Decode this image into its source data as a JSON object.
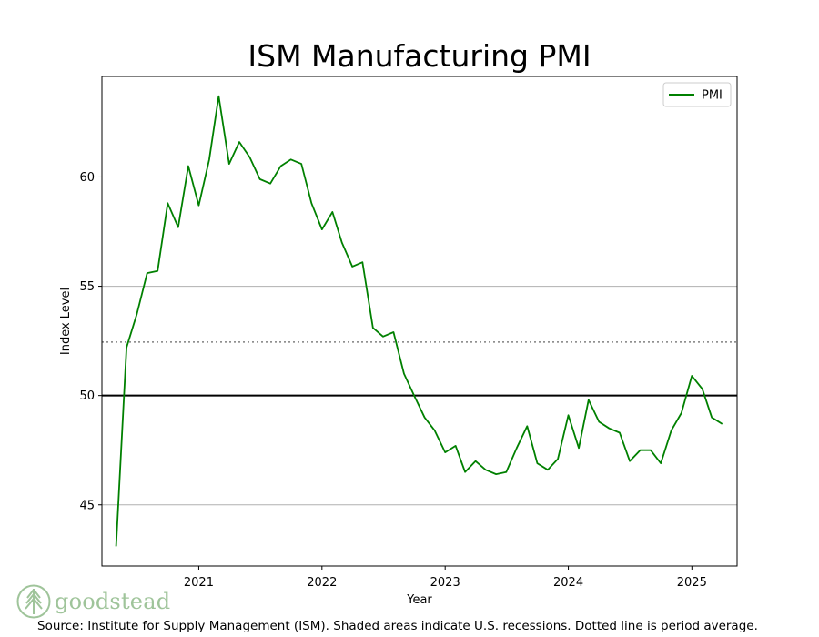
{
  "chart_data": {
    "type": "line",
    "title": "ISM Manufacturing PMI",
    "xlabel": "Year",
    "ylabel": "Index Level",
    "x_ticks": [
      "2021",
      "2022",
      "2023",
      "2024",
      "2025"
    ],
    "y_ticks": [
      45,
      50,
      55,
      60
    ],
    "xlim": [
      "2020-03-20",
      "2025-05-15"
    ],
    "ylim": [
      42.2,
      64.6
    ],
    "grid": "horizontal",
    "legend_position": "top-right",
    "reference_lines": {
      "threshold": 50,
      "period_average": 52.45
    },
    "series": [
      {
        "name": "PMI",
        "color": "#008000",
        "points": [
          [
            "2020-05-01",
            43.1
          ],
          [
            "2020-06-01",
            52.2
          ],
          [
            "2020-07-01",
            53.7
          ],
          [
            "2020-08-01",
            55.6
          ],
          [
            "2020-09-01",
            55.7
          ],
          [
            "2020-10-01",
            58.8
          ],
          [
            "2020-11-01",
            57.7
          ],
          [
            "2020-12-01",
            60.5
          ],
          [
            "2021-01-01",
            58.7
          ],
          [
            "2021-02-01",
            60.8
          ],
          [
            "2021-03-01",
            63.7
          ],
          [
            "2021-04-01",
            60.6
          ],
          [
            "2021-05-01",
            61.6
          ],
          [
            "2021-06-01",
            60.9
          ],
          [
            "2021-07-01",
            59.9
          ],
          [
            "2021-08-01",
            59.7
          ],
          [
            "2021-09-01",
            60.5
          ],
          [
            "2021-10-01",
            60.8
          ],
          [
            "2021-11-01",
            60.6
          ],
          [
            "2021-12-01",
            58.8
          ],
          [
            "2022-01-01",
            57.6
          ],
          [
            "2022-02-01",
            58.4
          ],
          [
            "2022-03-01",
            57.0
          ],
          [
            "2022-04-01",
            55.9
          ],
          [
            "2022-05-01",
            56.1
          ],
          [
            "2022-06-01",
            53.1
          ],
          [
            "2022-07-01",
            52.7
          ],
          [
            "2022-08-01",
            52.9
          ],
          [
            "2022-09-01",
            51.0
          ],
          [
            "2022-10-01",
            50.0
          ],
          [
            "2022-11-01",
            49.0
          ],
          [
            "2022-12-01",
            48.4
          ],
          [
            "2023-01-01",
            47.4
          ],
          [
            "2023-02-01",
            47.7
          ],
          [
            "2023-03-01",
            46.5
          ],
          [
            "2023-04-01",
            47.0
          ],
          [
            "2023-05-01",
            46.6
          ],
          [
            "2023-06-01",
            46.4
          ],
          [
            "2023-07-01",
            46.5
          ],
          [
            "2023-08-01",
            47.6
          ],
          [
            "2023-09-01",
            48.6
          ],
          [
            "2023-10-01",
            46.9
          ],
          [
            "2023-11-01",
            46.6
          ],
          [
            "2023-12-01",
            47.1
          ],
          [
            "2024-01-01",
            49.1
          ],
          [
            "2024-02-01",
            47.6
          ],
          [
            "2024-03-01",
            49.8
          ],
          [
            "2024-04-01",
            48.8
          ],
          [
            "2024-05-01",
            48.5
          ],
          [
            "2024-06-01",
            48.3
          ],
          [
            "2024-07-01",
            47.0
          ],
          [
            "2024-08-01",
            47.5
          ],
          [
            "2024-09-01",
            47.5
          ],
          [
            "2024-10-01",
            46.9
          ],
          [
            "2024-11-01",
            48.4
          ],
          [
            "2024-12-01",
            49.2
          ],
          [
            "2025-01-01",
            50.9
          ],
          [
            "2025-02-01",
            50.3
          ],
          [
            "2025-03-01",
            49.0
          ],
          [
            "2025-04-01",
            48.7
          ]
        ]
      }
    ]
  },
  "footer": {
    "source_note": "Source:  Institute for Supply Management (ISM). Shaded areas indicate U.S. recessions. Dotted line is period average.",
    "logo_text": "goodstead",
    "logo_color": "#9fc49a",
    "logo_icon": "tree-icon"
  },
  "colors": {
    "zero_line": "#000000",
    "average_line": "#808080",
    "grid": "#b0b0b0"
  }
}
